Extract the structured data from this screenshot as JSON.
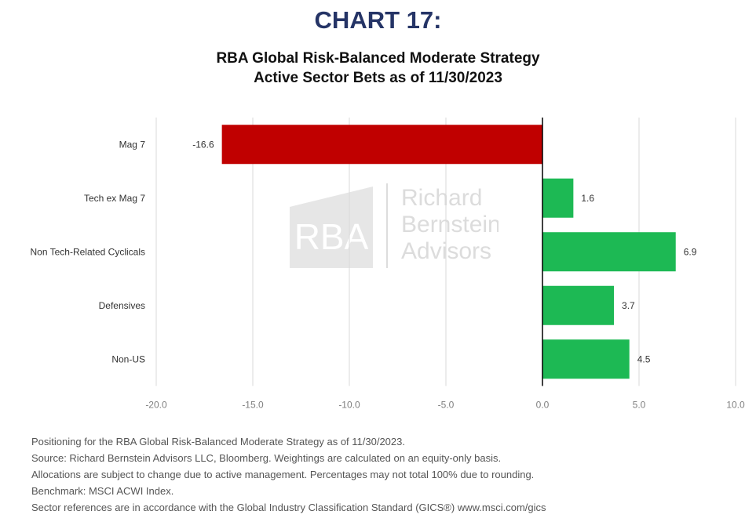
{
  "header": {
    "chart_number": "CHART 17:",
    "title_line1": "RBA Global Risk-Balanced Moderate Strategy",
    "title_line2": "Active Sector Bets as of 11/30/2023"
  },
  "watermark": {
    "monogram": "RBA",
    "line1": "Richard",
    "line2": "Bernstein",
    "line3": "Advisors"
  },
  "chart_data": {
    "type": "bar",
    "orientation": "horizontal",
    "categories": [
      "Mag 7",
      "Tech ex Mag 7",
      "Non Tech-Related Cyclicals",
      "Defensives",
      "Non-US"
    ],
    "values": [
      -16.6,
      1.6,
      6.9,
      3.7,
      4.5
    ],
    "value_labels": [
      "-16.6",
      "1.6",
      "6.9",
      "3.7",
      "4.5"
    ],
    "xlim": [
      -20,
      10
    ],
    "ticks": [
      -20,
      -15,
      -10,
      -5,
      0,
      5,
      10
    ],
    "tick_labels": [
      "-20.0",
      "-15.0",
      "-10.0",
      "-5.0",
      "0.0",
      "5.0",
      "10.0"
    ],
    "grid": "vertical",
    "colors": {
      "negative": "#c00000",
      "positive": "#1db954",
      "grid": "#d9d9d9",
      "axis": "#000000"
    }
  },
  "footnotes": [
    "Positioning for the RBA Global Risk-Balanced Moderate Strategy as of 11/30/2023.",
    "Source: Richard Bernstein Advisors LLC, Bloomberg. Weightings are calculated on an equity-only basis.",
    "Allocations are subject to change due to active management. Percentages may not total 100% due to rounding.",
    "Benchmark: MSCI ACWI Index.",
    "Sector references are in accordance with the Global Industry Classification Standard (GICS®) www.msci.com/gics"
  ]
}
